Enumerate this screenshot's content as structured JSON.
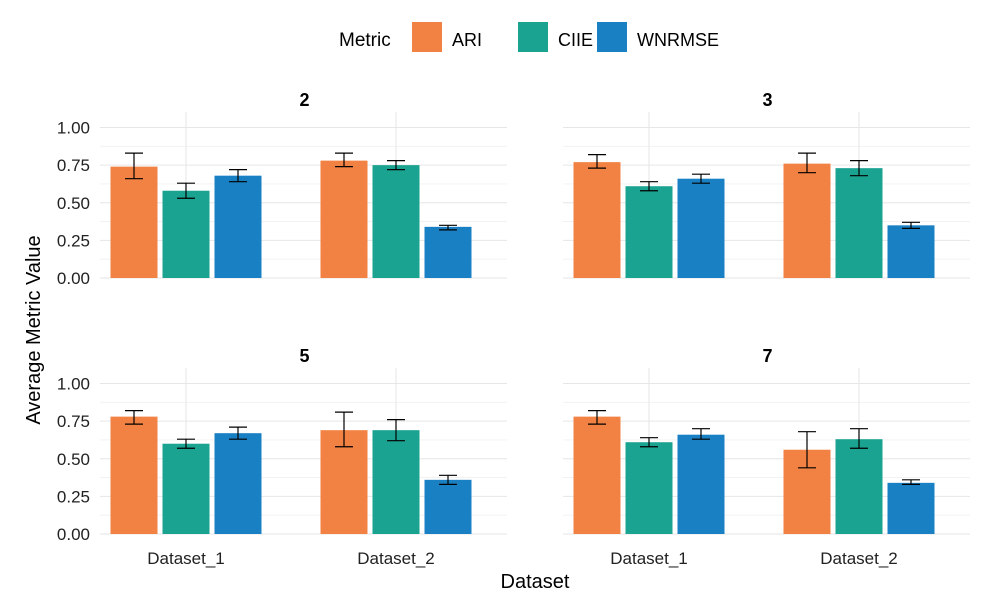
{
  "chart_data": {
    "type": "bar",
    "xlabel": "Dataset",
    "ylabel": "Average Metric Value",
    "ylim": [
      0,
      1.05
    ],
    "yticks": [
      "0.00",
      "0.25",
      "0.50",
      "0.75",
      "1.00"
    ],
    "ytick_values": [
      0,
      0.25,
      0.5,
      0.75,
      1.0
    ],
    "categories": [
      "Dataset_1",
      "Dataset_2"
    ],
    "legend": {
      "title": "Metric",
      "placement": "top",
      "entries": [
        {
          "name": "ARI",
          "color": "#F28243"
        },
        {
          "name": "CIIE",
          "color": "#1AA391"
        },
        {
          "name": "WNRMSE",
          "color": "#1A80C4"
        }
      ]
    },
    "grid": true,
    "panels": [
      {
        "title": "2",
        "series": [
          {
            "name": "ARI",
            "values": [
              0.74,
              0.78
            ],
            "err_low": [
              0.66,
              0.74
            ],
            "err_high": [
              0.83,
              0.83
            ]
          },
          {
            "name": "CIIE",
            "values": [
              0.58,
              0.75
            ],
            "err_low": [
              0.53,
              0.72
            ],
            "err_high": [
              0.63,
              0.78
            ]
          },
          {
            "name": "WNRMSE",
            "values": [
              0.68,
              0.34
            ],
            "err_low": [
              0.64,
              0.32
            ],
            "err_high": [
              0.72,
              0.35
            ]
          }
        ]
      },
      {
        "title": "3",
        "series": [
          {
            "name": "ARI",
            "values": [
              0.77,
              0.76
            ],
            "err_low": [
              0.73,
              0.7
            ],
            "err_high": [
              0.82,
              0.83
            ]
          },
          {
            "name": "CIIE",
            "values": [
              0.61,
              0.73
            ],
            "err_low": [
              0.58,
              0.68
            ],
            "err_high": [
              0.64,
              0.78
            ]
          },
          {
            "name": "WNRMSE",
            "values": [
              0.66,
              0.35
            ],
            "err_low": [
              0.63,
              0.33
            ],
            "err_high": [
              0.69,
              0.37
            ]
          }
        ]
      },
      {
        "title": "5",
        "series": [
          {
            "name": "ARI",
            "values": [
              0.78,
              0.69
            ],
            "err_low": [
              0.73,
              0.58
            ],
            "err_high": [
              0.82,
              0.81
            ]
          },
          {
            "name": "CIIE",
            "values": [
              0.6,
              0.69
            ],
            "err_low": [
              0.57,
              0.62
            ],
            "err_high": [
              0.63,
              0.76
            ]
          },
          {
            "name": "WNRMSE",
            "values": [
              0.67,
              0.36
            ],
            "err_low": [
              0.63,
              0.33
            ],
            "err_high": [
              0.71,
              0.39
            ]
          }
        ]
      },
      {
        "title": "7",
        "series": [
          {
            "name": "ARI",
            "values": [
              0.78,
              0.56
            ],
            "err_low": [
              0.73,
              0.44
            ],
            "err_high": [
              0.82,
              0.68
            ]
          },
          {
            "name": "CIIE",
            "values": [
              0.61,
              0.63
            ],
            "err_low": [
              0.58,
              0.57
            ],
            "err_high": [
              0.64,
              0.7
            ]
          },
          {
            "name": "WNRMSE",
            "values": [
              0.66,
              0.34
            ],
            "err_low": [
              0.63,
              0.33
            ],
            "err_high": [
              0.7,
              0.36
            ]
          }
        ]
      }
    ]
  }
}
